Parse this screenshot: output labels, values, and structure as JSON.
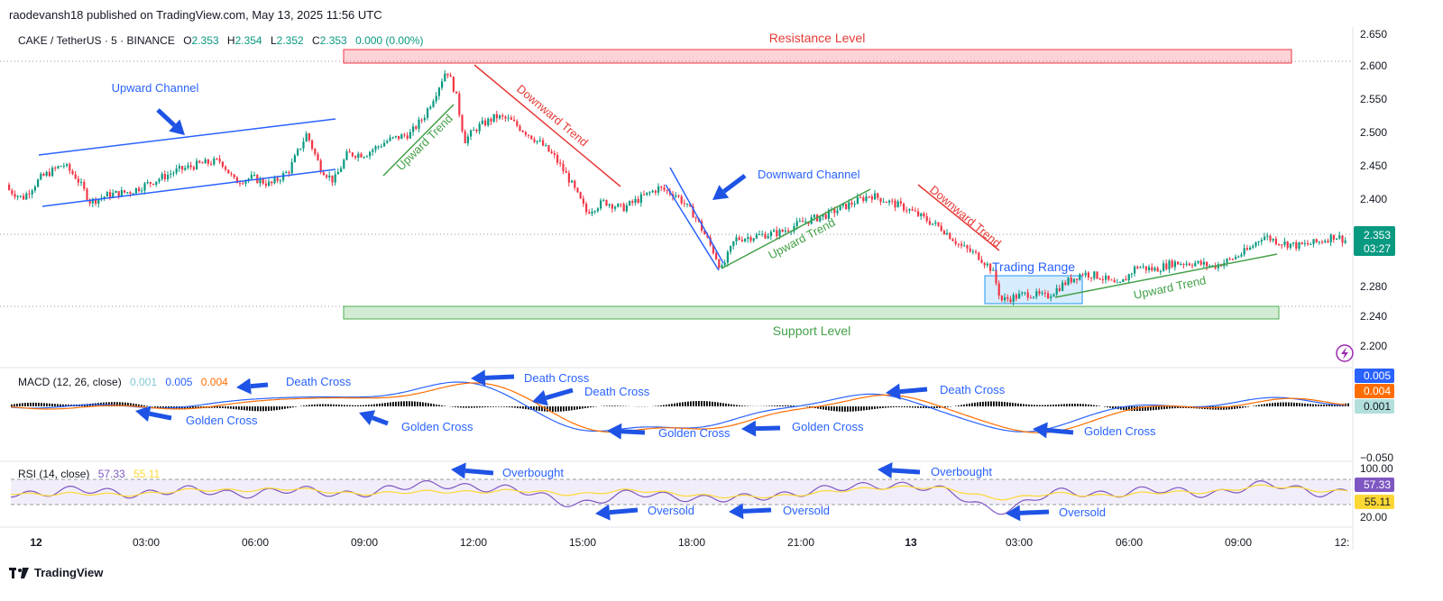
{
  "header": {
    "publisher": "raodevansh18 published on TradingView.com, May 13, 2025 11:56 UTC"
  },
  "symbol": {
    "name": "CAKE / TetherUS · 5 · BINANCE",
    "o_label": "O",
    "o_value": "2.353",
    "h_label": "H",
    "h_value": "2.354",
    "l_label": "L",
    "l_value": "2.352",
    "c_label": "C",
    "c_value": "2.353",
    "change": "0.000 (0.00%)"
  },
  "brand": {
    "name": "TradingView"
  },
  "colors": {
    "up": "#089981",
    "down": "#f23645",
    "blue": "#2962ff",
    "orange": "#ff6d00",
    "rsi": "#7e57c2",
    "rsi_ma": "#fdd835",
    "green_anno": "#43a047",
    "red_anno": "#e53935",
    "arrow": "#1e53e5"
  },
  "chart_data": [
    {
      "type": "candlestick",
      "panel": "price",
      "y_ticks": [
        "2.650",
        "2.600",
        "2.550",
        "2.500",
        "2.450",
        "2.400",
        "2.280",
        "2.240",
        "2.200"
      ],
      "x_ticks": [
        "12",
        "03:00",
        "06:00",
        "09:00",
        "12:00",
        "15:00",
        "18:00",
        "21:00",
        "13",
        "03:00",
        "06:00",
        "09:00",
        "12:"
      ],
      "ylim": [
        2.19,
        2.66
      ],
      "last_price": "2.353",
      "countdown": "03:27",
      "path_points": [
        [
          0,
          2.435
        ],
        [
          25,
          2.415
        ],
        [
          45,
          2.445
        ],
        [
          70,
          2.465
        ],
        [
          85,
          2.445
        ],
        [
          100,
          2.41
        ],
        [
          120,
          2.42
        ],
        [
          145,
          2.425
        ],
        [
          170,
          2.44
        ],
        [
          195,
          2.455
        ],
        [
          220,
          2.465
        ],
        [
          245,
          2.47
        ],
        [
          260,
          2.44
        ],
        [
          280,
          2.445
        ],
        [
          300,
          2.435
        ],
        [
          320,
          2.455
        ],
        [
          340,
          2.51
        ],
        [
          355,
          2.46
        ],
        [
          370,
          2.44
        ],
        [
          385,
          2.48
        ],
        [
          405,
          2.48
        ],
        [
          430,
          2.5
        ],
        [
          455,
          2.51
        ],
        [
          470,
          2.535
        ],
        [
          485,
          2.575
        ],
        [
          495,
          2.605
        ],
        [
          505,
          2.57
        ],
        [
          515,
          2.5
        ],
        [
          530,
          2.52
        ],
        [
          550,
          2.535
        ],
        [
          565,
          2.53
        ],
        [
          585,
          2.51
        ],
        [
          600,
          2.495
        ],
        [
          615,
          2.475
        ],
        [
          630,
          2.445
        ],
        [
          650,
          2.395
        ],
        [
          670,
          2.41
        ],
        [
          690,
          2.4
        ],
        [
          710,
          2.415
        ],
        [
          730,
          2.43
        ],
        [
          750,
          2.42
        ],
        [
          770,
          2.39
        ],
        [
          790,
          2.34
        ],
        [
          800,
          2.31
        ],
        [
          815,
          2.355
        ],
        [
          840,
          2.36
        ],
        [
          865,
          2.365
        ],
        [
          890,
          2.38
        ],
        [
          915,
          2.39
        ],
        [
          940,
          2.405
        ],
        [
          965,
          2.42
        ],
        [
          985,
          2.41
        ],
        [
          1005,
          2.4
        ],
        [
          1025,
          2.385
        ],
        [
          1045,
          2.37
        ],
        [
          1065,
          2.345
        ],
        [
          1085,
          2.33
        ],
        [
          1100,
          2.31
        ],
        [
          1110,
          2.265
        ],
        [
          1125,
          2.27
        ],
        [
          1140,
          2.275
        ],
        [
          1160,
          2.27
        ],
        [
          1180,
          2.29
        ],
        [
          1200,
          2.305
        ],
        [
          1220,
          2.3
        ],
        [
          1240,
          2.285
        ],
        [
          1260,
          2.315
        ],
        [
          1280,
          2.31
        ],
        [
          1300,
          2.32
        ],
        [
          1325,
          2.32
        ],
        [
          1345,
          2.315
        ],
        [
          1365,
          2.325
        ],
        [
          1385,
          2.34
        ],
        [
          1400,
          2.36
        ],
        [
          1420,
          2.35
        ],
        [
          1440,
          2.345
        ],
        [
          1460,
          2.35
        ],
        [
          1480,
          2.36
        ],
        [
          1492,
          2.353
        ]
      ],
      "annotations": [
        {
          "text": "Resistance Level"
        },
        {
          "text": "Support Level"
        },
        {
          "text": "Upward Channel"
        },
        {
          "text": "Upward Trend"
        },
        {
          "text": "Downward Trend"
        },
        {
          "text": "Downward Channel"
        },
        {
          "text": "Upward Trend"
        },
        {
          "text": "Downward Trend"
        },
        {
          "text": "Trading Range"
        },
        {
          "text": "Upward Trend"
        }
      ]
    },
    {
      "type": "line",
      "panel": "macd",
      "legend": {
        "name": "MACD (12, 26, close)",
        "macd": "0.001",
        "signal": "0.005",
        "hist": "0.004"
      },
      "scale_labels": {
        "signal": "0.005",
        "hist": "0.004",
        "macd": "0.001",
        "low": "−0.050"
      },
      "annotations": [
        {
          "text": "Death Cross"
        },
        {
          "text": "Golden Cross"
        },
        {
          "text": "Golden Cross"
        },
        {
          "text": "Death Cross"
        },
        {
          "text": "Death Cross"
        },
        {
          "text": "Golden Cross"
        },
        {
          "text": "Golden Cross"
        },
        {
          "text": "Death Cross"
        },
        {
          "text": "Golden Cross"
        }
      ]
    },
    {
      "type": "line",
      "panel": "rsi",
      "legend": {
        "name": "RSI (14, close)",
        "rsi": "57.33",
        "ma": "55.11"
      },
      "scale_labels": {
        "top": "100.00",
        "rsi": "57.33",
        "ma": "55.11",
        "bottom": "20.00"
      },
      "annotations": [
        {
          "text": "Overbought"
        },
        {
          "text": "Overbought"
        },
        {
          "text": "Oversold"
        },
        {
          "text": "Oversold"
        },
        {
          "text": "Oversold"
        }
      ]
    }
  ]
}
